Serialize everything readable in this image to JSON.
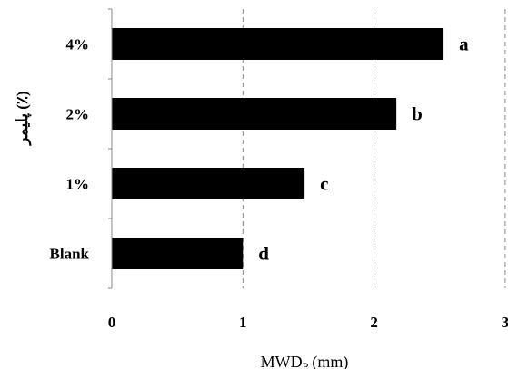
{
  "chart_data": {
    "type": "bar",
    "orientation": "horizontal",
    "categories": [
      "Blank",
      "1%",
      "2%",
      "4%"
    ],
    "values": [
      1.0,
      1.47,
      2.17,
      2.53
    ],
    "data_labels": [
      "d",
      "c",
      "b",
      "a"
    ],
    "xlabel_main": "MWD",
    "xlabel_sub": "P",
    "xlabel_unit": "(mm)",
    "ylabel": "پلیمر (٪)",
    "xlim": [
      0,
      3
    ],
    "xticks": [
      "0",
      "1",
      "2",
      "3"
    ],
    "grid": "vertical-dashed",
    "bar_color": "#000000"
  }
}
